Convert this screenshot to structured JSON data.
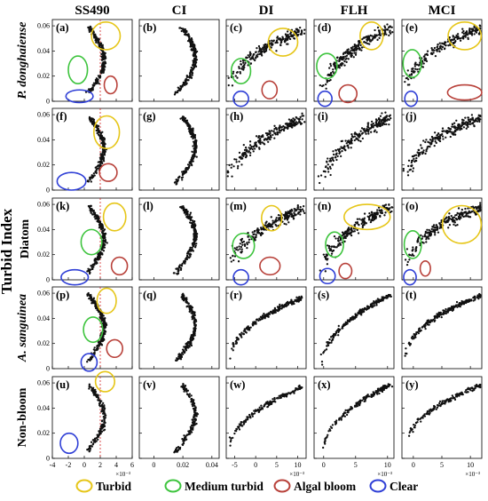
{
  "figure": {
    "y_axis_title": "Turbid Index",
    "columns": [
      "SS490",
      "CI",
      "DI",
      "FLH",
      "MCI"
    ],
    "rows": [
      {
        "label": "P. donghaiense",
        "italic": true
      },
      {
        "label": "",
        "italic": false
      },
      {
        "label": "Diatom",
        "italic": false
      },
      {
        "label": "A. sanguinea",
        "italic": true
      },
      {
        "label": "Non-bloom",
        "italic": false
      }
    ],
    "panel_letters": [
      "(a)",
      "(b)",
      "(c)",
      "(d)",
      "(e)",
      "(f)",
      "(g)",
      "(h)",
      "(i)",
      "(j)",
      "(k)",
      "(l)",
      "(m)",
      "(n)",
      "(o)",
      "(p)",
      "(q)",
      "(r)",
      "(s)",
      "(t)",
      "(u)",
      "(v)",
      "(w)",
      "(x)",
      "(y)"
    ]
  },
  "chart_data": {
    "type": "scatter",
    "ylim": [
      0,
      0.065
    ],
    "y_ticks": [
      "0",
      "0.02",
      "0.04",
      "0.06"
    ],
    "x_axes": [
      {
        "column": "SS490",
        "xlim": [
          -4,
          6
        ],
        "ticks": [
          "-4",
          "-2",
          "0",
          "2",
          "4",
          "6"
        ],
        "exponent": "×10⁻³",
        "reference_line_x": 2,
        "reference_line_color": "#d22020"
      },
      {
        "column": "CI",
        "xlim": [
          -0.01,
          0.045
        ],
        "ticks": [
          "0",
          "0.02",
          "0.04"
        ],
        "exponent": ""
      },
      {
        "column": "DI",
        "xlim": [
          -7,
          12
        ],
        "ticks": [
          "-5",
          "0",
          "5",
          "10"
        ],
        "exponent": "×10⁻³"
      },
      {
        "column": "FLH",
        "xlim": [
          -1.5,
          11
        ],
        "ticks": [
          "0",
          "5",
          "10"
        ],
        "exponent": "×10⁻³"
      },
      {
        "column": "MCI",
        "xlim": [
          -2,
          12
        ],
        "ticks": [
          "0",
          "5",
          "10"
        ],
        "exponent": "×10⁻³"
      }
    ],
    "legend": {
      "placement": "bottom",
      "items": [
        {
          "label": "Turbid",
          "color": "#e6c619"
        },
        {
          "label": "Medium turbid",
          "color": "#3ec43e"
        },
        {
          "label": "Algal bloom",
          "color": "#b8413a"
        },
        {
          "label": "Clear",
          "color": "#2f3fd6"
        }
      ]
    },
    "annotations": [
      {
        "panel": "(a)",
        "class": "Turbid",
        "cx": 2.7,
        "cy": 0.052,
        "rx": 1.8,
        "ry": 0.011
      },
      {
        "panel": "(a)",
        "class": "Medium turbid",
        "cx": -0.8,
        "cy": 0.025,
        "rx": 1.2,
        "ry": 0.011
      },
      {
        "panel": "(a)",
        "class": "Algal bloom",
        "cx": 3.3,
        "cy": 0.013,
        "rx": 0.8,
        "ry": 0.007
      },
      {
        "panel": "(a)",
        "class": "Clear",
        "cx": -0.6,
        "cy": 0.004,
        "rx": 1.7,
        "ry": 0.005
      },
      {
        "panel": "(c)",
        "class": "Turbid",
        "cx": 6.5,
        "cy": 0.047,
        "rx": 3.5,
        "ry": 0.011
      },
      {
        "panel": "(c)",
        "class": "Medium turbid",
        "cx": -3.5,
        "cy": 0.024,
        "rx": 2.3,
        "ry": 0.01
      },
      {
        "panel": "(c)",
        "class": "Algal bloom",
        "cx": 3.3,
        "cy": 0.009,
        "rx": 1.8,
        "ry": 0.007
      },
      {
        "panel": "(c)",
        "class": "Clear",
        "cx": -3.5,
        "cy": 0.002,
        "rx": 1.8,
        "ry": 0.006
      },
      {
        "panel": "(d)",
        "class": "Turbid",
        "cx": 7.5,
        "cy": 0.052,
        "rx": 1.8,
        "ry": 0.011
      },
      {
        "panel": "(d)",
        "class": "Medium turbid",
        "cx": 0.5,
        "cy": 0.028,
        "rx": 1.6,
        "ry": 0.01
      },
      {
        "panel": "(d)",
        "class": "Algal bloom",
        "cx": 3.8,
        "cy": 0.006,
        "rx": 1.4,
        "ry": 0.007
      },
      {
        "panel": "(d)",
        "class": "Clear",
        "cx": 0.2,
        "cy": 0.002,
        "rx": 1.1,
        "ry": 0.006
      },
      {
        "panel": "(e)",
        "class": "Turbid",
        "cx": 9.0,
        "cy": 0.052,
        "rx": 2.9,
        "ry": 0.011
      },
      {
        "panel": "(e)",
        "class": "Medium turbid",
        "cx": -0.2,
        "cy": 0.03,
        "rx": 1.6,
        "ry": 0.011
      },
      {
        "panel": "(e)",
        "class": "Algal bloom",
        "cx": 9.0,
        "cy": 0.007,
        "rx": 3.0,
        "ry": 0.006
      },
      {
        "panel": "(e)",
        "class": "Clear",
        "cx": -0.4,
        "cy": 0.002,
        "rx": 1.1,
        "ry": 0.006
      },
      {
        "panel": "(f)",
        "class": "Turbid",
        "cx": 2.8,
        "cy": 0.046,
        "rx": 1.6,
        "ry": 0.013
      },
      {
        "panel": "(f)",
        "class": "Algal bloom",
        "cx": 3.0,
        "cy": 0.014,
        "rx": 1.1,
        "ry": 0.007
      },
      {
        "panel": "(f)",
        "class": "Clear",
        "cx": -1.6,
        "cy": 0.007,
        "rx": 1.8,
        "ry": 0.007
      },
      {
        "panel": "(k)",
        "class": "Turbid",
        "cx": 3.8,
        "cy": 0.05,
        "rx": 1.4,
        "ry": 0.011
      },
      {
        "panel": "(k)",
        "class": "Medium turbid",
        "cx": 0.9,
        "cy": 0.03,
        "rx": 1.3,
        "ry": 0.01
      },
      {
        "panel": "(k)",
        "class": "Algal bloom",
        "cx": 4.4,
        "cy": 0.011,
        "rx": 1.0,
        "ry": 0.007
      },
      {
        "panel": "(k)",
        "class": "Clear",
        "cx": -1.2,
        "cy": 0.002,
        "rx": 1.7,
        "ry": 0.006
      },
      {
        "panel": "(m)",
        "class": "Turbid",
        "cx": 3.8,
        "cy": 0.049,
        "rx": 2.4,
        "ry": 0.01
      },
      {
        "panel": "(m)",
        "class": "Medium turbid",
        "cx": -2.9,
        "cy": 0.027,
        "rx": 2.6,
        "ry": 0.01
      },
      {
        "panel": "(m)",
        "class": "Algal bloom",
        "cx": 3.4,
        "cy": 0.011,
        "rx": 2.4,
        "ry": 0.007
      },
      {
        "panel": "(m)",
        "class": "Clear",
        "cx": -3.5,
        "cy": 0.002,
        "rx": 1.8,
        "ry": 0.006
      },
      {
        "panel": "(n)",
        "class": "Turbid",
        "cx": 6.8,
        "cy": 0.05,
        "rx": 3.6,
        "ry": 0.01
      },
      {
        "panel": "(n)",
        "class": "Medium turbid",
        "cx": 1.7,
        "cy": 0.028,
        "rx": 1.4,
        "ry": 0.01
      },
      {
        "panel": "(n)",
        "class": "Algal bloom",
        "cx": 3.4,
        "cy": 0.007,
        "rx": 1.0,
        "ry": 0.006
      },
      {
        "panel": "(n)",
        "class": "Clear",
        "cx": 0.6,
        "cy": 0.003,
        "rx": 1.2,
        "ry": 0.006
      },
      {
        "panel": "(o)",
        "class": "Turbid",
        "cx": 8.5,
        "cy": 0.044,
        "rx": 3.4,
        "ry": 0.015
      },
      {
        "panel": "(o)",
        "class": "Medium turbid",
        "cx": -0.1,
        "cy": 0.028,
        "rx": 1.5,
        "ry": 0.011
      },
      {
        "panel": "(o)",
        "class": "Algal bloom",
        "cx": 2.1,
        "cy": 0.009,
        "rx": 0.9,
        "ry": 0.006
      },
      {
        "panel": "(o)",
        "class": "Clear",
        "cx": -0.6,
        "cy": 0.002,
        "rx": 1.1,
        "ry": 0.006
      },
      {
        "panel": "(p)",
        "class": "Turbid",
        "cx": 2.8,
        "cy": 0.054,
        "rx": 1.2,
        "ry": 0.01
      },
      {
        "panel": "(p)",
        "class": "Medium turbid",
        "cx": 1.1,
        "cy": 0.031,
        "rx": 1.2,
        "ry": 0.01
      },
      {
        "panel": "(p)",
        "class": "Algal bloom",
        "cx": 3.8,
        "cy": 0.016,
        "rx": 1.0,
        "ry": 0.007
      },
      {
        "panel": "(p)",
        "class": "Clear",
        "cx": 0.6,
        "cy": 0.005,
        "rx": 1.0,
        "ry": 0.007
      },
      {
        "panel": "(u)",
        "class": "Turbid",
        "cx": 2.6,
        "cy": 0.061,
        "rx": 1.2,
        "ry": 0.008
      },
      {
        "panel": "(u)",
        "class": "Clear",
        "cx": -1.9,
        "cy": 0.012,
        "rx": 1.1,
        "ry": 0.008
      }
    ]
  }
}
